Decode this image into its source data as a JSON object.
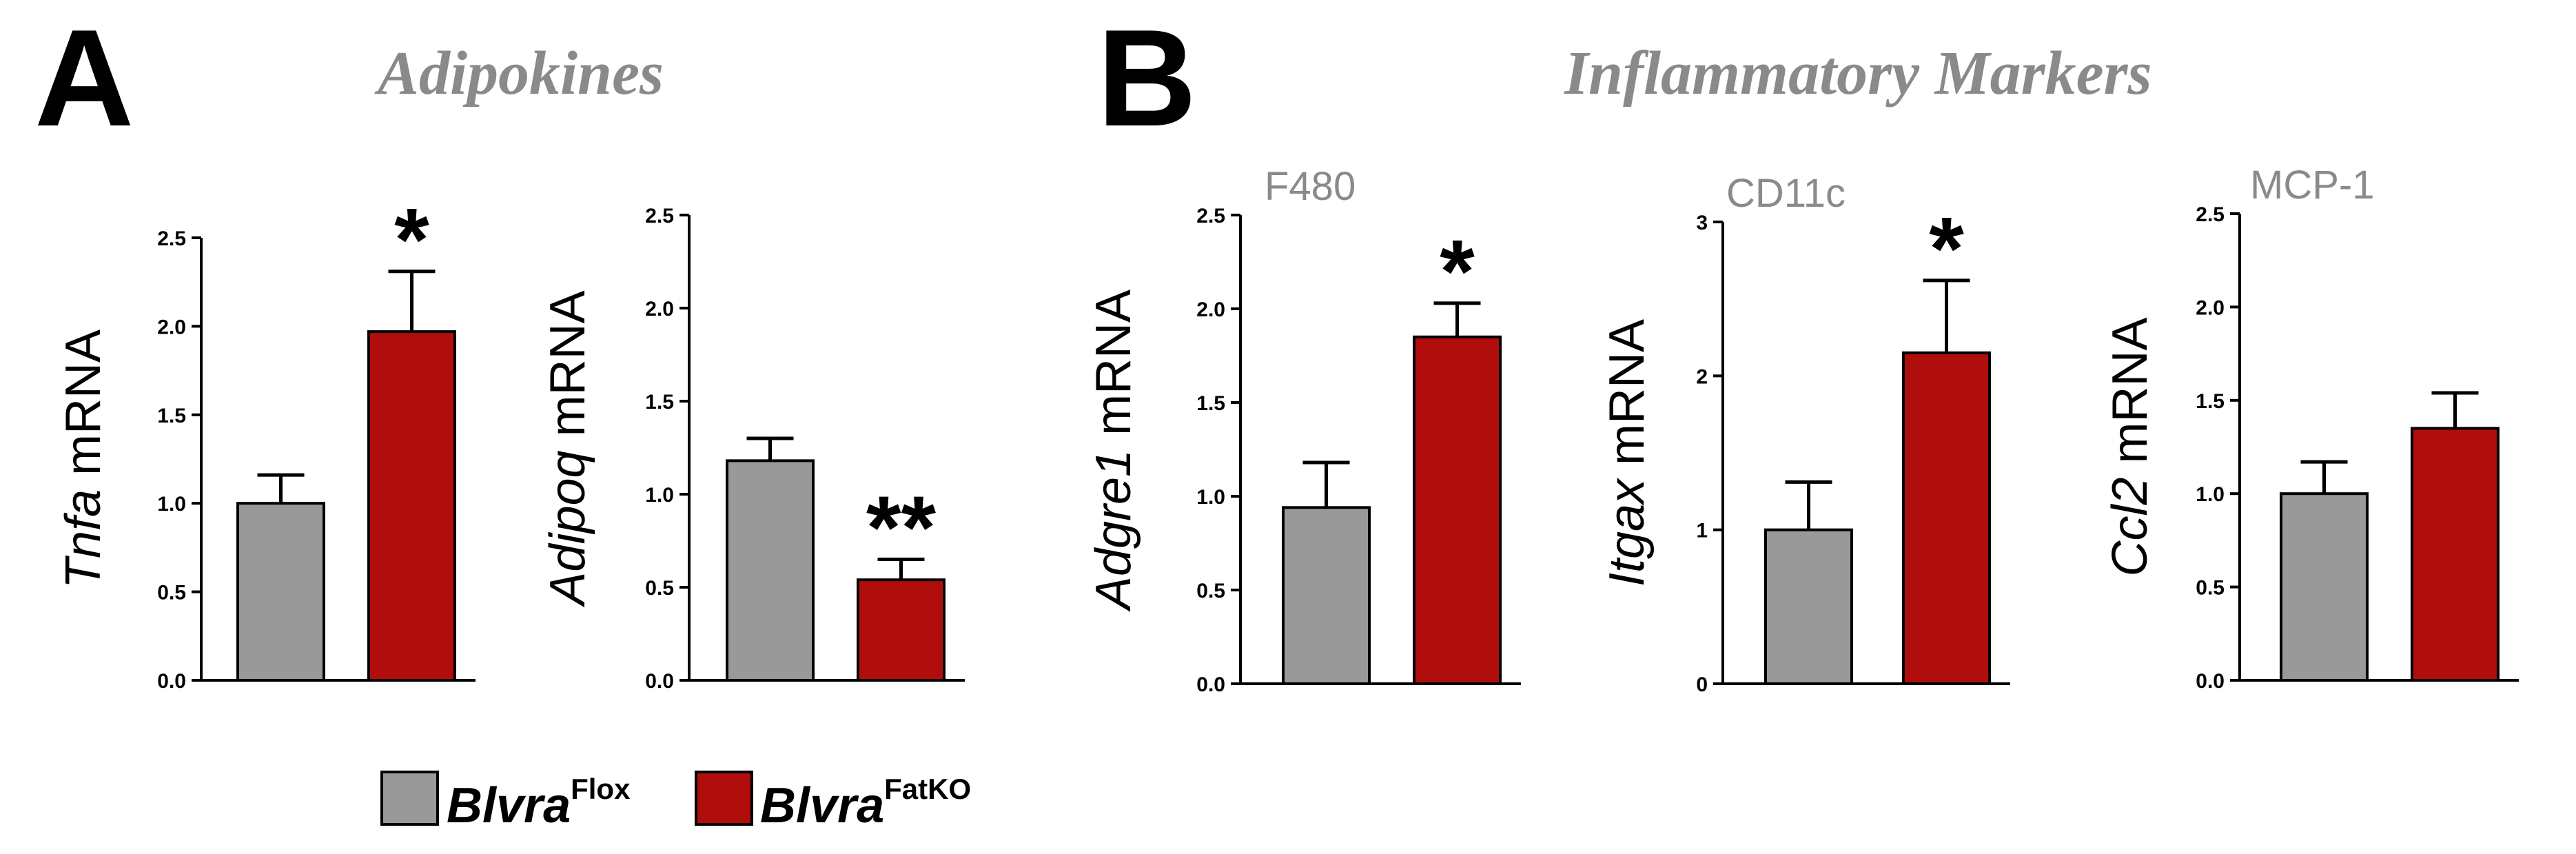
{
  "panels": {
    "a": {
      "letter": "A",
      "title": "Adipokines"
    },
    "b": {
      "letter": "B",
      "title": "Inflammatory Markers"
    }
  },
  "colors": {
    "flox": "#999999",
    "fatko": "#b00d0d",
    "axis": "#000000",
    "subtitle": "#8a8a8a"
  },
  "legend": {
    "flox": {
      "gene": "Blvra",
      "sup": "Flox"
    },
    "fatko": {
      "gene": "Blvra",
      "sup": "FatKO"
    }
  },
  "chart_data": [
    {
      "type": "bar",
      "id": "tnfa",
      "title": "",
      "ylabel_gene": "Tnfa",
      "ylabel_suffix": " mRNA",
      "categories": [
        "Blvra Flox",
        "Blvra FatKO"
      ],
      "values": [
        1.0,
        1.97
      ],
      "errors": [
        0.16,
        0.34
      ],
      "ylim": [
        0,
        2.5
      ],
      "yticks": [
        "0.0",
        "0.5",
        "1.0",
        "1.5",
        "2.0",
        "2.5"
      ],
      "significance": [
        "",
        "*"
      ]
    },
    {
      "type": "bar",
      "id": "adipoq",
      "title": "",
      "ylabel_gene": "Adipoq",
      "ylabel_suffix": " mRNA",
      "categories": [
        "Blvra Flox",
        "Blvra FatKO"
      ],
      "values": [
        1.18,
        0.54
      ],
      "errors": [
        0.12,
        0.11
      ],
      "ylim": [
        0,
        2.5
      ],
      "yticks": [
        "0.0",
        "0.5",
        "1.0",
        "1.5",
        "2.0",
        "2.5"
      ],
      "significance": [
        "",
        "**"
      ]
    },
    {
      "type": "bar",
      "id": "adgre1",
      "title": "F480",
      "ylabel_gene": "Adgre1",
      "ylabel_suffix": " mRNA",
      "categories": [
        "Blvra Flox",
        "Blvra FatKO"
      ],
      "values": [
        0.94,
        1.85
      ],
      "errors": [
        0.24,
        0.18
      ],
      "ylim": [
        0,
        2.5
      ],
      "yticks": [
        "0.0",
        "0.5",
        "1.0",
        "1.5",
        "2.0",
        "2.5"
      ],
      "significance": [
        "",
        "*"
      ]
    },
    {
      "type": "bar",
      "id": "itgax",
      "title": "CD11c",
      "ylabel_gene": "Itgax",
      "ylabel_suffix": " mRNA",
      "categories": [
        "Blvra Flox",
        "Blvra FatKO"
      ],
      "values": [
        1.0,
        2.15
      ],
      "errors": [
        0.31,
        0.47
      ],
      "ylim": [
        0,
        3
      ],
      "yticks": [
        "0",
        "1",
        "2",
        "3"
      ],
      "significance": [
        "",
        "*"
      ]
    },
    {
      "type": "bar",
      "id": "ccl2",
      "title": "MCP-1",
      "ylabel_gene": "Ccl2",
      "ylabel_suffix": " mRNA",
      "categories": [
        "Blvra Flox",
        "Blvra FatKO"
      ],
      "values": [
        1.0,
        1.35
      ],
      "errors": [
        0.17,
        0.19
      ],
      "ylim": [
        0,
        2.5
      ],
      "yticks": [
        "0.0",
        "0.5",
        "1.0",
        "1.5",
        "2.0",
        "2.5"
      ],
      "significance": [
        "",
        ""
      ]
    }
  ]
}
